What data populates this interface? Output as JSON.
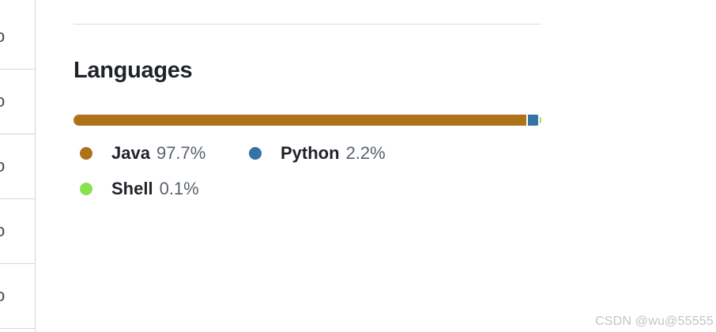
{
  "left_column": {
    "rows": [
      "o",
      "o",
      "o",
      "o",
      "o"
    ]
  },
  "languages": {
    "title": "Languages",
    "items": [
      {
        "name": "Java",
        "percent": "97.7%",
        "value": 97.7,
        "color": "#b07219"
      },
      {
        "name": "Python",
        "percent": "2.2%",
        "value": 2.2,
        "color": "#3572A5"
      },
      {
        "name": "Shell",
        "percent": "0.1%",
        "value": 0.1,
        "color": "#89e051"
      }
    ]
  },
  "watermark": "CSDN @wu@55555"
}
